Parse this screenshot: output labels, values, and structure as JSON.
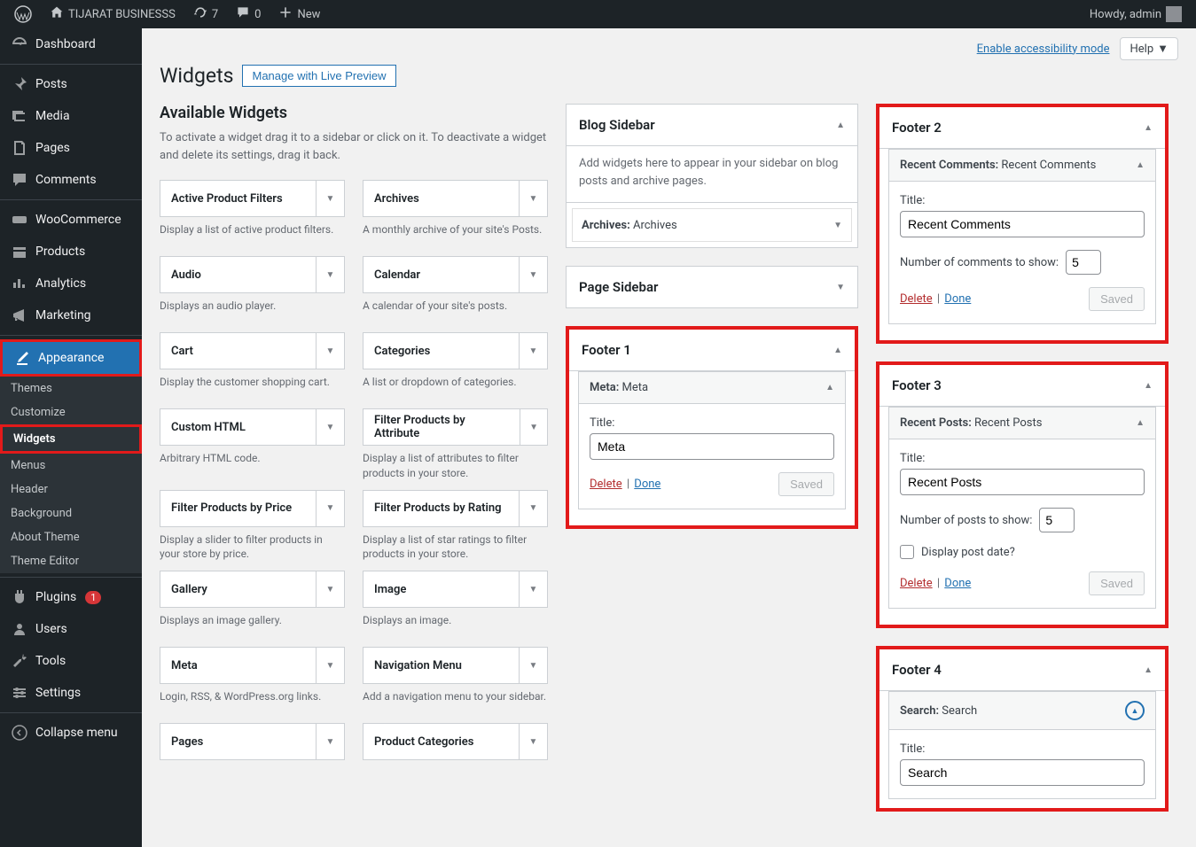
{
  "adminbar": {
    "site_name": "TIJARAT BUSINESSS",
    "updates_count": "7",
    "comments_count": "0",
    "new_label": "New",
    "howdy": "Howdy, admin"
  },
  "menu": {
    "dashboard": "Dashboard",
    "posts": "Posts",
    "media": "Media",
    "pages": "Pages",
    "comments": "Comments",
    "woocommerce": "WooCommerce",
    "products": "Products",
    "analytics": "Analytics",
    "marketing": "Marketing",
    "appearance": "Appearance",
    "themes": "Themes",
    "customize": "Customize",
    "widgets": "Widgets",
    "menus": "Menus",
    "header": "Header",
    "background": "Background",
    "about_theme": "About Theme",
    "theme_editor": "Theme Editor",
    "plugins": "Plugins",
    "plugins_count": "1",
    "users": "Users",
    "tools": "Tools",
    "settings": "Settings",
    "collapse": "Collapse menu"
  },
  "top": {
    "accessibility": "Enable accessibility mode",
    "help": "Help"
  },
  "page": {
    "title": "Widgets",
    "preview_btn": "Manage with Live Preview",
    "avail_heading": "Available Widgets",
    "avail_help": "To activate a widget drag it to a sidebar or click on it. To deactivate a widget and delete its settings, drag it back."
  },
  "widgets": [
    {
      "name": "Active Product Filters",
      "desc": "Display a list of active product filters."
    },
    {
      "name": "Archives",
      "desc": "A monthly archive of your site's Posts."
    },
    {
      "name": "Audio",
      "desc": "Displays an audio player."
    },
    {
      "name": "Calendar",
      "desc": "A calendar of your site's posts."
    },
    {
      "name": "Cart",
      "desc": "Display the customer shopping cart."
    },
    {
      "name": "Categories",
      "desc": "A list or dropdown of categories."
    },
    {
      "name": "Custom HTML",
      "desc": "Arbitrary HTML code."
    },
    {
      "name": "Filter Products by Attribute",
      "desc": "Display a list of attributes to filter products in your store."
    },
    {
      "name": "Filter Products by Price",
      "desc": "Display a slider to filter products in your store by price."
    },
    {
      "name": "Filter Products by Rating",
      "desc": "Display a list of star ratings to filter products in your store."
    },
    {
      "name": "Gallery",
      "desc": "Displays an image gallery."
    },
    {
      "name": "Image",
      "desc": "Displays an image."
    },
    {
      "name": "Meta",
      "desc": "Login, RSS, & WordPress.org links."
    },
    {
      "name": "Navigation Menu",
      "desc": "Add a navigation menu to your sidebar."
    },
    {
      "name": "Pages",
      "desc": ""
    },
    {
      "name": "Product Categories",
      "desc": ""
    }
  ],
  "areas": {
    "blog_sidebar": {
      "title": "Blog Sidebar",
      "desc": "Add widgets here to appear in your sidebar on blog posts and archive pages."
    },
    "page_sidebar": {
      "title": "Page Sidebar"
    },
    "footer1": {
      "title": "Footer 1",
      "widget_name": "Meta:",
      "widget_sub": " Meta",
      "field_title_label": "Title:",
      "field_title_value": "Meta",
      "delete": "Delete",
      "done": "Done",
      "saved": "Saved"
    },
    "footer2": {
      "title": "Footer 2",
      "widget_name": "Recent Comments:",
      "widget_sub": " Recent Comments",
      "field_title_label": "Title:",
      "field_title_value": "Recent Comments",
      "count_label": "Number of comments to show:",
      "count_value": "5",
      "delete": "Delete",
      "done": "Done",
      "saved": "Saved"
    },
    "footer3": {
      "title": "Footer 3",
      "widget_name": "Recent Posts:",
      "widget_sub": " Recent Posts",
      "field_title_label": "Title:",
      "field_title_value": "Recent Posts",
      "count_label": "Number of posts to show:",
      "count_value": "5",
      "date_label": "Display post date?",
      "delete": "Delete",
      "done": "Done",
      "saved": "Saved"
    },
    "footer4": {
      "title": "Footer 4",
      "widget_name": "Search:",
      "widget_sub": " Search",
      "field_title_label": "Title:",
      "field_title_value": "Search"
    },
    "archives_label": "Archives:",
    "archives_sub": " Archives"
  }
}
